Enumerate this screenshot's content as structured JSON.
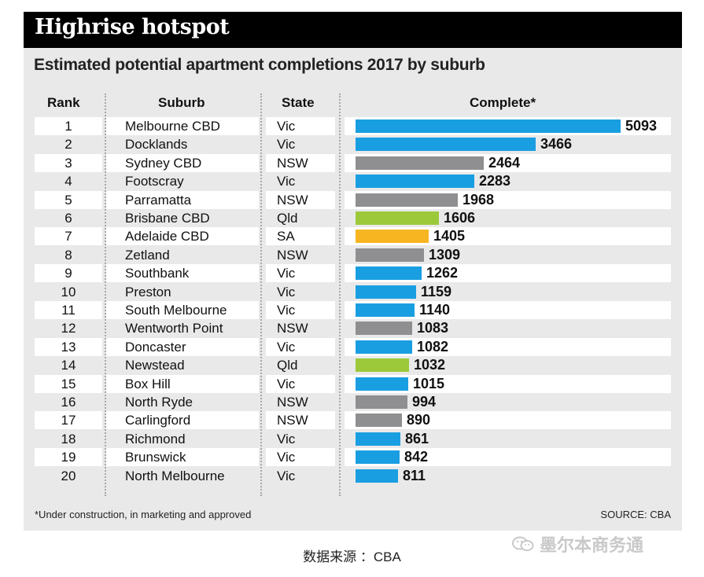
{
  "header": {
    "title": "Highrise hotspot",
    "subtitle": "Estimated potential apartment completions 2017 by suburb"
  },
  "columns": {
    "rank": "Rank",
    "suburb": "Suburb",
    "state": "State",
    "complete": "Complete*"
  },
  "colors": {
    "Vic": "#1a9ee2",
    "NSW": "#8f8f91",
    "Qld": "#9cc93a",
    "SA": "#f7b522"
  },
  "chart_data": {
    "type": "bar",
    "orientation": "horizontal",
    "title": "Estimated potential apartment completions 2017 by suburb",
    "xlabel": "Complete*",
    "ylabel": "Suburb",
    "xlim": [
      0,
      5093
    ],
    "rows": [
      {
        "rank": "1",
        "suburb": "Melbourne CBD",
        "state": "Vic",
        "value": 5093
      },
      {
        "rank": "2",
        "suburb": "Docklands",
        "state": "Vic",
        "value": 3466
      },
      {
        "rank": "3",
        "suburb": "Sydney CBD",
        "state": "NSW",
        "value": 2464
      },
      {
        "rank": "4",
        "suburb": "Footscray",
        "state": "Vic",
        "value": 2283
      },
      {
        "rank": "5",
        "suburb": "Parramatta",
        "state": "NSW",
        "value": 1968
      },
      {
        "rank": "6",
        "suburb": "Brisbane CBD",
        "state": "Qld",
        "value": 1606
      },
      {
        "rank": "7",
        "suburb": "Adelaide CBD",
        "state": "SA",
        "value": 1405
      },
      {
        "rank": "8",
        "suburb": "Zetland",
        "state": "NSW",
        "value": 1309
      },
      {
        "rank": "9",
        "suburb": "Southbank",
        "state": "Vic",
        "value": 1262
      },
      {
        "rank": "10",
        "suburb": "Preston",
        "state": "Vic",
        "value": 1159
      },
      {
        "rank": "11",
        "suburb": "South Melbourne",
        "state": "Vic",
        "value": 1140
      },
      {
        "rank": "12",
        "suburb": "Wentworth Point",
        "state": "NSW",
        "value": 1083
      },
      {
        "rank": "13",
        "suburb": "Doncaster",
        "state": "Vic",
        "value": 1082
      },
      {
        "rank": "14",
        "suburb": "Newstead",
        "state": "Qld",
        "value": 1032
      },
      {
        "rank": "15",
        "suburb": "Box Hill",
        "state": "Vic",
        "value": 1015
      },
      {
        "rank": "16",
        "suburb": "North Ryde",
        "state": "NSW",
        "value": 994
      },
      {
        "rank": "17",
        "suburb": "Carlingford",
        "state": "NSW",
        "value": 890
      },
      {
        "rank": "18",
        "suburb": "Richmond",
        "state": "Vic",
        "value": 861
      },
      {
        "rank": "19",
        "suburb": "Brunswick",
        "state": "Vic",
        "value": 842
      },
      {
        "rank": "20",
        "suburb": "North Melbourne",
        "state": "Vic",
        "value": 811
      }
    ]
  },
  "footer": {
    "footnote": "*Under construction, in marketing and approved",
    "source": "SOURCE: CBA"
  },
  "caption": "数据来源 ：CBA",
  "watermark": {
    "text": "墨尔本商务通",
    "icon": "wechat-icon"
  }
}
